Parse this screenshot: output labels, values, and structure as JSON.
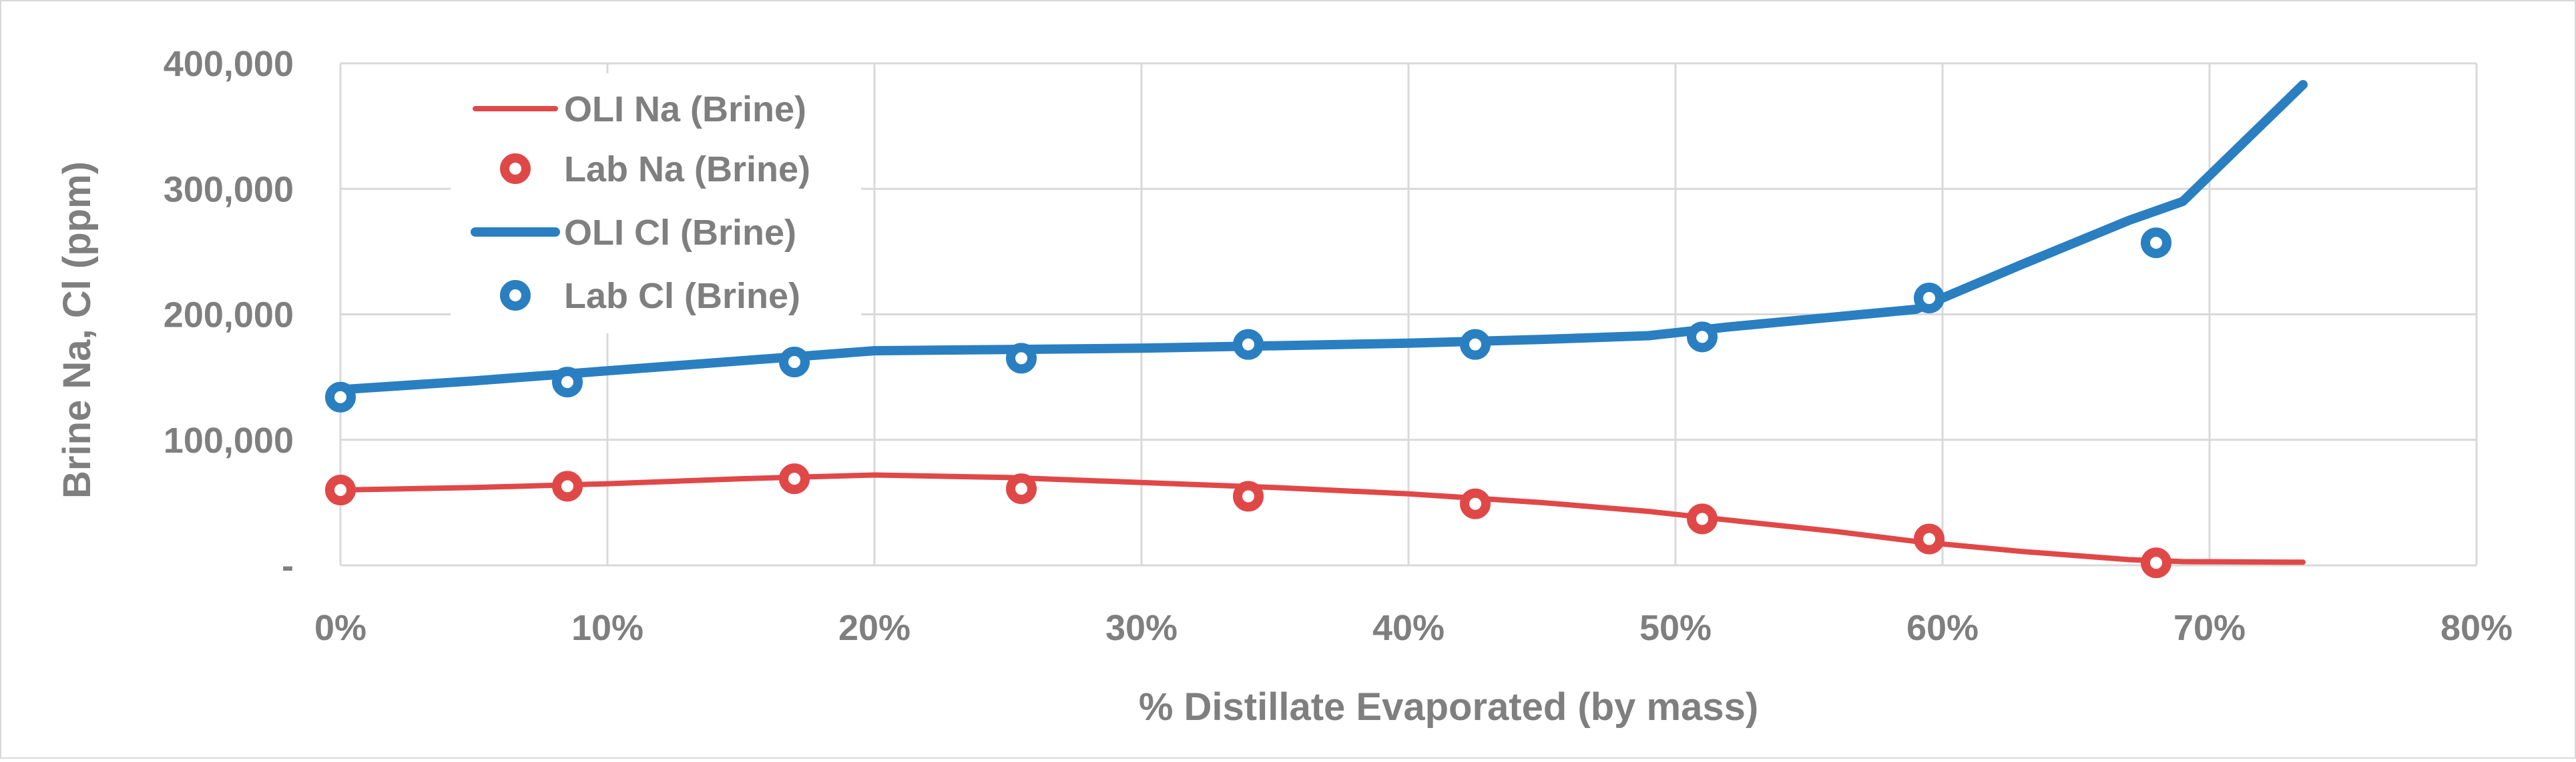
{
  "chart_data": {
    "type": "line",
    "title": "",
    "xlabel": "% Distillate Evaporated (by mass)",
    "ylabel": "Brine Na, Cl (ppm)",
    "xlim": [
      0,
      0.8
    ],
    "ylim": [
      0,
      400000
    ],
    "x_ticks": [
      0,
      0.1,
      0.2,
      0.3,
      0.4,
      0.5,
      0.6,
      0.7,
      0.8
    ],
    "x_tick_labels": [
      "0%",
      "10%",
      "20%",
      "30%",
      "40%",
      "50%",
      "60%",
      "70%",
      "80%"
    ],
    "y_ticks": [
      0,
      100000,
      200000,
      300000,
      400000
    ],
    "y_tick_labels": [
      "-",
      "100,000",
      "200,000",
      "300,000",
      "400,000"
    ],
    "grid": true,
    "legend_position": "top-left",
    "series": [
      {
        "name": "OLI Na (Brine)",
        "kind": "line",
        "color": "#e04848",
        "x": [
          0,
          0.05,
          0.1,
          0.15,
          0.2,
          0.25,
          0.3,
          0.35,
          0.4,
          0.45,
          0.49,
          0.52,
          0.56,
          0.59,
          0.63,
          0.67,
          0.69,
          0.735
        ],
        "y": [
          60000,
          62000,
          65000,
          69000,
          72000,
          70000,
          66000,
          62000,
          57000,
          50000,
          43000,
          36000,
          27000,
          19000,
          11000,
          4500,
          3000,
          2500
        ]
      },
      {
        "name": "Lab Na (Brine)",
        "kind": "scatter",
        "color": "#e04848",
        "x": [
          0,
          0.085,
          0.17,
          0.255,
          0.34,
          0.425,
          0.51,
          0.595,
          0.68
        ],
        "y": [
          60000,
          63000,
          69000,
          61000,
          55000,
          49000,
          37000,
          21000,
          2000
        ]
      },
      {
        "name": "OLI Cl (Brine)",
        "kind": "line",
        "color": "#2a7fc1",
        "x": [
          0,
          0.05,
          0.1,
          0.15,
          0.2,
          0.25,
          0.3,
          0.35,
          0.4,
          0.45,
          0.49,
          0.52,
          0.56,
          0.59,
          0.63,
          0.67,
          0.69,
          0.735
        ],
        "y": [
          140000,
          147000,
          155000,
          163000,
          171000,
          172000,
          173000,
          175000,
          177000,
          180000,
          183000,
          190000,
          198000,
          204000,
          240000,
          275000,
          290000,
          383000
        ]
      },
      {
        "name": "Lab Cl (Brine)",
        "kind": "scatter",
        "color": "#2a7fc1",
        "x": [
          0,
          0.085,
          0.17,
          0.255,
          0.34,
          0.425,
          0.51,
          0.595,
          0.68
        ],
        "y": [
          134000,
          146000,
          162000,
          165000,
          176000,
          176000,
          182000,
          213000,
          257000
        ]
      }
    ]
  }
}
